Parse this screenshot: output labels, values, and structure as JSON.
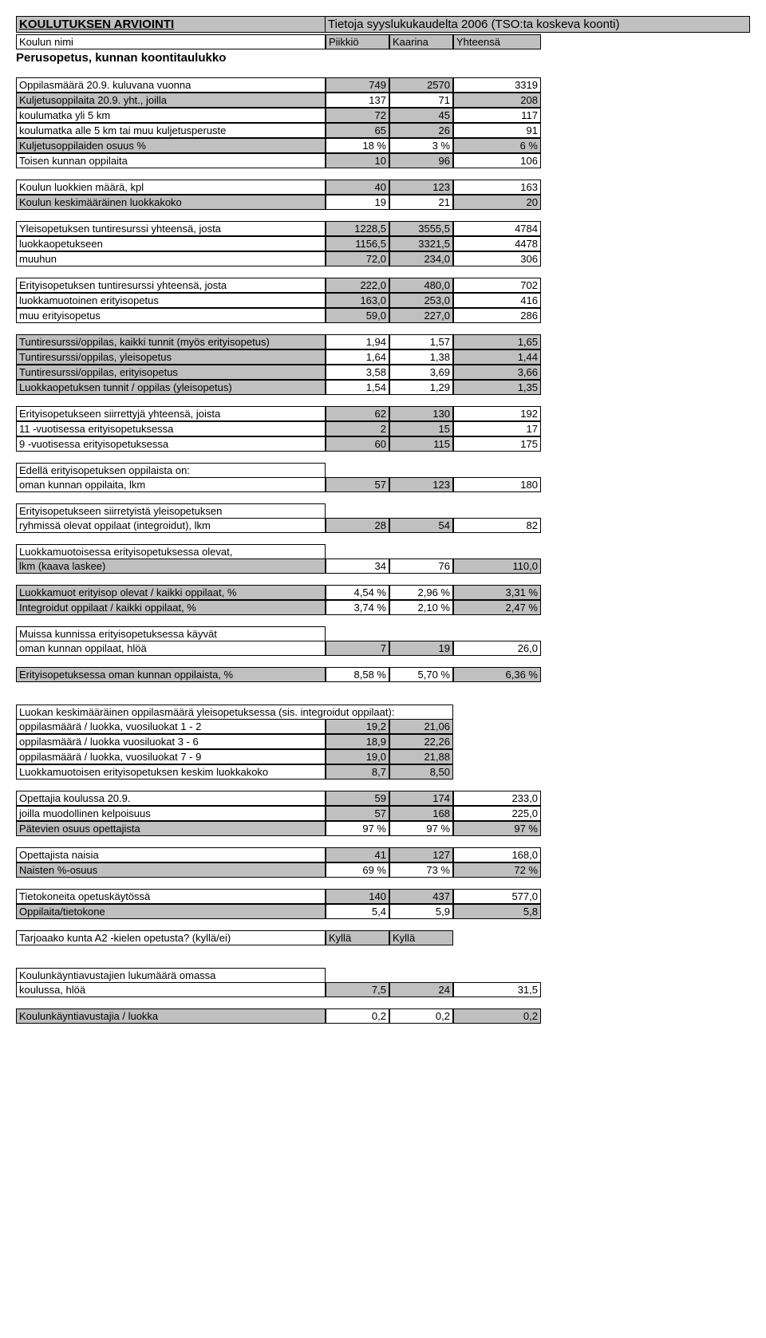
{
  "header": {
    "title_left": "KOULUTUKSEN ARVIOINTI",
    "title_right": "Tietoja syyslukukaudelta 2006 (TSO:ta koskeva koonti)",
    "school_label": "Koulun nimi",
    "col1": "Piikkiö",
    "col2": "Kaarina",
    "col3": "Yhteensä",
    "section": "Perusopetus, kunnan koontitaulukko"
  },
  "rows": [
    {
      "label": "Oppilasmäärä 20.9. kuluvana vuonna",
      "c1": "749",
      "c2": "2570",
      "c3": "3319",
      "shade": [
        false,
        true,
        true,
        false
      ]
    },
    {
      "label": "Kuljetusoppilaita 20.9. yht., joilla",
      "c1": "137",
      "c2": "71",
      "c3": "208",
      "shade": [
        true,
        false,
        false,
        true
      ]
    },
    {
      "label": "  koulumatka yli 5 km",
      "c1": "72",
      "c2": "45",
      "c3": "117",
      "shade": [
        false,
        true,
        true,
        false
      ]
    },
    {
      "label": "  koulumatka alle 5 km tai muu kuljetusperuste",
      "c1": "65",
      "c2": "26",
      "c3": "91",
      "shade": [
        false,
        true,
        true,
        false
      ]
    },
    {
      "label": "Kuljetusoppilaiden osuus %",
      "c1": "18 %",
      "c2": "3 %",
      "c3": "6 %",
      "shade": [
        true,
        false,
        false,
        true
      ]
    },
    {
      "label": "Toisen kunnan oppilaita",
      "c1": "10",
      "c2": "96",
      "c3": "106",
      "shade": [
        false,
        true,
        true,
        false
      ]
    }
  ],
  "block2": [
    {
      "label": "Koulun luokkien määrä, kpl",
      "c1": "40",
      "c2": "123",
      "c3": "163",
      "shade": [
        false,
        true,
        true,
        false
      ]
    },
    {
      "label": "Koulun keskimääräinen luokkakoko",
      "c1": "19",
      "c2": "21",
      "c3": "20",
      "shade": [
        true,
        false,
        false,
        true
      ]
    }
  ],
  "block3": [
    {
      "label": "Yleisopetuksen tuntiresurssi yhteensä, josta",
      "c1": "1228,5",
      "c2": "3555,5",
      "c3": "4784",
      "shade": [
        false,
        true,
        true,
        false
      ]
    },
    {
      "label": "  luokkaopetukseen",
      "c1": "1156,5",
      "c2": "3321,5",
      "c3": "4478",
      "shade": [
        false,
        true,
        true,
        false
      ]
    },
    {
      "label": "  muuhun",
      "c1": "72,0",
      "c2": "234,0",
      "c3": "306",
      "shade": [
        false,
        true,
        true,
        false
      ]
    }
  ],
  "block4": [
    {
      "label": "Erityisopetuksen tuntiresurssi yhteensä, josta",
      "c1": "222,0",
      "c2": "480,0",
      "c3": "702",
      "shade": [
        false,
        true,
        true,
        false
      ]
    },
    {
      "label": "  luokkamuotoinen erityisopetus",
      "c1": "163,0",
      "c2": "253,0",
      "c3": "416",
      "shade": [
        false,
        true,
        true,
        false
      ]
    },
    {
      "label": "  muu erityisopetus",
      "c1": "59,0",
      "c2": "227,0",
      "c3": "286",
      "shade": [
        false,
        true,
        true,
        false
      ]
    }
  ],
  "block5": [
    {
      "label": "Tuntiresurssi/oppilas, kaikki tunnit (myös erityisopetus)",
      "c1": "1,94",
      "c2": "1,57",
      "c3": "1,65",
      "shade": [
        true,
        false,
        false,
        true
      ]
    },
    {
      "label": "Tuntiresurssi/oppilas, yleisopetus",
      "c1": "1,64",
      "c2": "1,38",
      "c3": "1,44",
      "shade": [
        true,
        false,
        false,
        true
      ]
    },
    {
      "label": "Tuntiresurssi/oppilas, erityisopetus",
      "c1": "3,58",
      "c2": "3,69",
      "c3": "3,66",
      "shade": [
        true,
        false,
        false,
        true
      ]
    },
    {
      "label": "Luokkaopetuksen tunnit / oppilas (yleisopetus)",
      "c1": "1,54",
      "c2": "1,29",
      "c3": "1,35",
      "shade": [
        true,
        false,
        false,
        true
      ]
    }
  ],
  "block6": [
    {
      "label": "Erityisopetukseen siirrettyjä yhteensä, joista",
      "c1": "62",
      "c2": "130",
      "c3": "192",
      "shade": [
        false,
        true,
        true,
        false
      ]
    },
    {
      "label": "  11 -vuotisessa erityisopetuksessa",
      "c1": "2",
      "c2": "15",
      "c3": "17",
      "shade": [
        false,
        true,
        true,
        false
      ]
    },
    {
      "label": "   9 -vuotisessa erityisopetuksessa",
      "c1": "60",
      "c2": "115",
      "c3": "175",
      "shade": [
        false,
        true,
        true,
        false
      ]
    }
  ],
  "block7": {
    "hdr": "Edellä erityisopetuksen oppilaista on:",
    "rows": [
      {
        "label": "  oman kunnan oppilaita, lkm",
        "c1": "57",
        "c2": "123",
        "c3": "180",
        "shade": [
          false,
          true,
          true,
          false
        ]
      }
    ]
  },
  "block8": {
    "hdr": "Erityisopetukseen siirretyistä yleisopetuksen",
    "rows": [
      {
        "label": "  ryhmissä olevat oppilaat (integroidut), lkm",
        "c1": "28",
        "c2": "54",
        "c3": "82",
        "shade": [
          false,
          true,
          true,
          false
        ]
      }
    ]
  },
  "block9": {
    "hdr": "Luokkamuotoisessa erityisopetuksessa olevat,",
    "rows": [
      {
        "label": "lkm  (kaava laskee)",
        "c1": "34",
        "c2": "76",
        "c3": "110,0",
        "shade": [
          true,
          false,
          false,
          true
        ]
      }
    ]
  },
  "block10": [
    {
      "label": "Luokkamuot erityisop olevat / kaikki oppilaat, %",
      "c1": "4,54 %",
      "c2": "2,96 %",
      "c3": "3,31 %",
      "shade": [
        true,
        false,
        false,
        true
      ]
    },
    {
      "label": "Integroidut oppilaat / kaikki oppilaat, %",
      "c1": "3,74 %",
      "c2": "2,10 %",
      "c3": "2,47 %",
      "shade": [
        true,
        false,
        false,
        true
      ]
    }
  ],
  "block11": {
    "hdr": "Muissa kunnissa erityisopetuksessa käyvät",
    "rows": [
      {
        "label": "  oman kunnan oppilaat, hlöä",
        "c1": "7",
        "c2": "19",
        "c3": "26,0",
        "shade": [
          false,
          true,
          true,
          false
        ]
      }
    ]
  },
  "block12": [
    {
      "label": "Erityisopetuksessa oman kunnan oppilaista, %",
      "c1": "8,58 %",
      "c2": "5,70 %",
      "c3": "6,36 %",
      "shade": [
        true,
        false,
        false,
        true
      ]
    }
  ],
  "block13": {
    "hdr": "Luokan keskimääräinen oppilasmäärä yleisopetuksessa (sis. integroidut oppilaat):",
    "rows": [
      {
        "label": "  oppilasmäärä / luokka, vuosiluokat 1 - 2",
        "c1": "19,2",
        "c2": "21,06",
        "shade": [
          false,
          true,
          true
        ]
      },
      {
        "label": "  oppilasmäärä / luokka vuosiluokat 3 - 6",
        "c1": "18,9",
        "c2": "22,26",
        "shade": [
          false,
          true,
          true
        ]
      },
      {
        "label": "  oppilasmäärä / luokka, vuosiluokat 7 - 9",
        "c1": "19,0",
        "c2": "21,88",
        "shade": [
          false,
          true,
          true
        ]
      },
      {
        "label": "Luokkamuotoisen erityisopetuksen keskim luokkakoko",
        "c1": "8,7",
        "c2": "8,50",
        "shade": [
          false,
          true,
          true
        ]
      }
    ]
  },
  "block14": [
    {
      "label": "Opettajia koulussa 20.9.",
      "c1": "59",
      "c2": "174",
      "c3": "233,0",
      "shade": [
        false,
        true,
        true,
        false
      ]
    },
    {
      "label": "  joilla muodollinen kelpoisuus",
      "c1": "57",
      "c2": "168",
      "c3": "225,0",
      "shade": [
        false,
        true,
        true,
        false
      ]
    },
    {
      "label": "Pätevien osuus opettajista",
      "c1": "97 %",
      "c2": "97 %",
      "c3": "97 %",
      "shade": [
        true,
        false,
        false,
        true
      ]
    }
  ],
  "block15": [
    {
      "label": "Opettajista naisia",
      "c1": "41",
      "c2": "127",
      "c3": "168,0",
      "shade": [
        false,
        true,
        true,
        false
      ]
    },
    {
      "label": "Naisten %-osuus",
      "c1": "69 %",
      "c2": "73 %",
      "c3": "72 %",
      "shade": [
        true,
        false,
        false,
        true
      ]
    }
  ],
  "block16": [
    {
      "label": "Tietokoneita opetuskäytössä",
      "c1": "140",
      "c2": "437",
      "c3": "577,0",
      "shade": [
        false,
        true,
        true,
        false
      ]
    },
    {
      "label": "Oppilaita/tietokone",
      "c1": "5,4",
      "c2": "5,9",
      "c3": "5,8",
      "shade": [
        true,
        false,
        false,
        true
      ]
    }
  ],
  "block17": [
    {
      "label": "Tarjoaako kunta A2 -kielen opetusta? (kyllä/ei)",
      "c1": "Kyllä",
      "c2": "Kyllä",
      "shade": [
        false,
        true,
        true
      ],
      "leftAlign": true
    }
  ],
  "block18": {
    "hdr": "Koulunkäyntiavustajien lukumäärä omassa",
    "rows": [
      {
        "label": "koulussa, hlöä",
        "c1": "7,5",
        "c2": "24",
        "c3": "31,5",
        "shade": [
          false,
          true,
          true,
          false
        ]
      }
    ]
  },
  "block19": [
    {
      "label": "Koulunkäyntiavustajia / luokka",
      "c1": "0,2",
      "c2": "0,2",
      "c3": "0,2",
      "shade": [
        true,
        false,
        false,
        true
      ]
    }
  ]
}
